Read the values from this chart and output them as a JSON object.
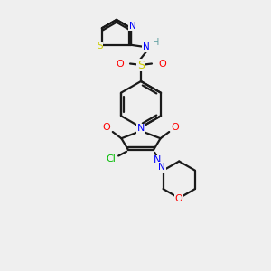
{
  "background_color": "#efefef",
  "bond_color": "#1a1a1a",
  "atom_colors": {
    "N": "#0000ff",
    "O": "#ff0000",
    "S": "#cccc00",
    "Cl": "#00bb00",
    "H": "#5f9ea0",
    "C": "#1a1a1a"
  },
  "figsize": [
    3.0,
    3.0
  ],
  "dpi": 100,
  "lw": 1.6
}
